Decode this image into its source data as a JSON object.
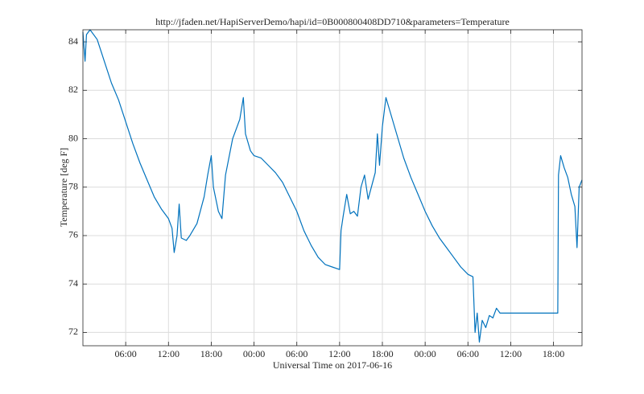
{
  "chart_data": {
    "type": "line",
    "title": "http://jfaden.net/HapiServerDemo/hapi/id=0B000800408DD710&parameters=Temperature",
    "x_label": "Universal Time on 2017-06-16",
    "y_label": "Temperature [deg F]",
    "color": "#0072bd",
    "grid": true,
    "xlim": [
      0,
      70
    ],
    "ylim": [
      71.45,
      84.5
    ],
    "xticks": [
      {
        "value": 6,
        "label": "06:00"
      },
      {
        "value": 12,
        "label": "12:00"
      },
      {
        "value": 18,
        "label": "18:00"
      },
      {
        "value": 24,
        "label": "00:00"
      },
      {
        "value": 30,
        "label": "06:00"
      },
      {
        "value": 36,
        "label": "12:00"
      },
      {
        "value": 42,
        "label": "18:00"
      },
      {
        "value": 48,
        "label": "00:00"
      },
      {
        "value": 54,
        "label": "06:00"
      },
      {
        "value": 60,
        "label": "12:00"
      },
      {
        "value": 66,
        "label": "18:00"
      }
    ],
    "yticks": [
      72,
      74,
      76,
      78,
      80,
      82,
      84
    ],
    "x": [
      0,
      0.3,
      0.5,
      1.0,
      2,
      3,
      4,
      5,
      6,
      7,
      8,
      9,
      10,
      11,
      12,
      12.5,
      12.8,
      13.2,
      13.5,
      13.8,
      14.5,
      15,
      16,
      17,
      17.5,
      18,
      18.3,
      19,
      19.5,
      20,
      21,
      22,
      22.5,
      22.8,
      23.5,
      24,
      25,
      26,
      27,
      28,
      29,
      30,
      31,
      32,
      33,
      34,
      35,
      36,
      36.2,
      36.5,
      37,
      37.5,
      38,
      38.5,
      39,
      39.5,
      40,
      41,
      41.3,
      41.6,
      42,
      42.5,
      43,
      44,
      45,
      46,
      47,
      48,
      49,
      50,
      51,
      52,
      53,
      54,
      54.7,
      55,
      55.3,
      55.6,
      56,
      56.5,
      57,
      57.5,
      58,
      58.5,
      60.9,
      66.6,
      66.7,
      67,
      67.5,
      68,
      68.5,
      69,
      69.3,
      69.6,
      70
    ],
    "values": [
      84.4,
      83.2,
      84.3,
      84.5,
      84.1,
      83.2,
      82.3,
      81.6,
      80.7,
      79.8,
      79.0,
      78.3,
      77.6,
      77.1,
      76.7,
      76.3,
      75.3,
      76.0,
      77.3,
      75.9,
      75.8,
      76.0,
      76.5,
      77.6,
      78.5,
      79.3,
      78.0,
      77.0,
      76.7,
      78.5,
      80.0,
      80.8,
      81.7,
      80.2,
      79.5,
      79.3,
      79.2,
      78.9,
      78.6,
      78.2,
      77.6,
      77.0,
      76.2,
      75.6,
      75.1,
      74.8,
      74.7,
      74.6,
      76.2,
      76.8,
      77.7,
      76.9,
      77.0,
      76.8,
      78.0,
      78.5,
      77.5,
      78.6,
      80.2,
      78.9,
      80.5,
      81.7,
      81.2,
      80.2,
      79.2,
      78.4,
      77.7,
      77.0,
      76.4,
      75.9,
      75.5,
      75.1,
      74.7,
      74.4,
      74.3,
      72.0,
      72.8,
      71.6,
      72.5,
      72.2,
      72.7,
      72.6,
      73.0,
      72.8,
      72.8,
      72.8,
      78.5,
      79.3,
      78.8,
      78.4,
      77.7,
      77.2,
      75.5,
      78.0,
      78.3
    ]
  }
}
